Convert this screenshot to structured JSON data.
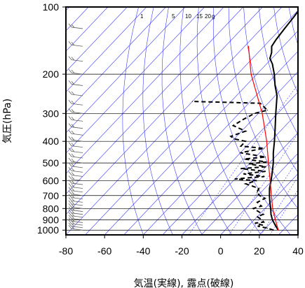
{
  "chart_data": {
    "type": "line",
    "chart_kind": "skew-T log-p sounding",
    "xlabel": "気温(実線), 露点(破線)",
    "ylabel": "気圧(hPa)",
    "x_range": [
      -80,
      40
    ],
    "y_range": [
      1050,
      100
    ],
    "y_scale": "log",
    "x_ticks": [
      -80,
      -60,
      -40,
      -20,
      0,
      20,
      40
    ],
    "y_ticks": [
      100,
      200,
      300,
      400,
      500,
      600,
      700,
      800,
      900,
      1000
    ],
    "mixing_ratio_labels": [
      "1",
      "5",
      "10",
      "15",
      "20",
      "g"
    ],
    "colors": {
      "temperature": "#000000",
      "dewpoint": "#000000",
      "parcel": "#ff0000",
      "guides": "#3a3aff",
      "grid": "#000000",
      "wind_barbs": "#606060"
    },
    "series": [
      {
        "key": "temperature",
        "style": "solid",
        "points": [
          [
            1000,
            27.5
          ],
          [
            975,
            25.5
          ],
          [
            950,
            23.5
          ],
          [
            925,
            21.5
          ],
          [
            900,
            19.5
          ],
          [
            850,
            16
          ],
          [
            800,
            13
          ],
          [
            750,
            9.5
          ],
          [
            700,
            6
          ],
          [
            650,
            2.5
          ],
          [
            600,
            -0.5
          ],
          [
            550,
            -4
          ],
          [
            500,
            -8
          ],
          [
            450,
            -13
          ],
          [
            400,
            -18
          ],
          [
            350,
            -24
          ],
          [
            300,
            -31
          ],
          [
            250,
            -39
          ],
          [
            225,
            -45
          ],
          [
            200,
            -51
          ],
          [
            180,
            -57
          ],
          [
            170,
            -61
          ],
          [
            160,
            -63
          ],
          [
            150,
            -66
          ],
          [
            140,
            -67
          ],
          [
            125,
            -68
          ],
          [
            110,
            -69
          ],
          [
            100,
            -70
          ]
        ]
      },
      {
        "key": "dewpoint",
        "style": "dashed",
        "points": [
          [
            1000,
            25
          ],
          [
            980,
            21
          ],
          [
            960,
            15
          ],
          [
            950,
            17
          ],
          [
            930,
            12
          ],
          [
            920,
            16
          ],
          [
            900,
            14
          ],
          [
            870,
            10
          ],
          [
            850,
            12
          ],
          [
            800,
            4
          ],
          [
            780,
            7
          ],
          [
            750,
            3
          ],
          [
            720,
            5
          ],
          [
            700,
            1
          ],
          [
            680,
            -2
          ],
          [
            650,
            -3
          ],
          [
            620,
            -12
          ],
          [
            600,
            -8
          ],
          [
            590,
            -20
          ],
          [
            575,
            -6
          ],
          [
            560,
            -18
          ],
          [
            545,
            -8
          ],
          [
            530,
            -22
          ],
          [
            520,
            -10
          ],
          [
            505,
            -20
          ],
          [
            495,
            -12
          ],
          [
            480,
            -25
          ],
          [
            470,
            -15
          ],
          [
            450,
            -30
          ],
          [
            430,
            -20
          ],
          [
            420,
            -33
          ],
          [
            400,
            -33
          ],
          [
            390,
            -40
          ],
          [
            380,
            -43
          ],
          [
            360,
            -38
          ],
          [
            340,
            -47
          ],
          [
            320,
            -45
          ],
          [
            300,
            -42
          ],
          [
            290,
            -37
          ],
          [
            270,
            -44
          ],
          [
            265,
            -80
          ]
        ]
      },
      {
        "key": "parcel",
        "style": "solid",
        "points": [
          [
            1000,
            27.5
          ],
          [
            900,
            21
          ],
          [
            800,
            14
          ],
          [
            700,
            7
          ],
          [
            600,
            -1
          ],
          [
            500,
            -10.5
          ],
          [
            400,
            -22
          ],
          [
            300,
            -38
          ],
          [
            200,
            -63
          ],
          [
            150,
            -78
          ]
        ]
      }
    ],
    "wind_barbs": "left column, every level from 1000 to 100 hPa"
  }
}
